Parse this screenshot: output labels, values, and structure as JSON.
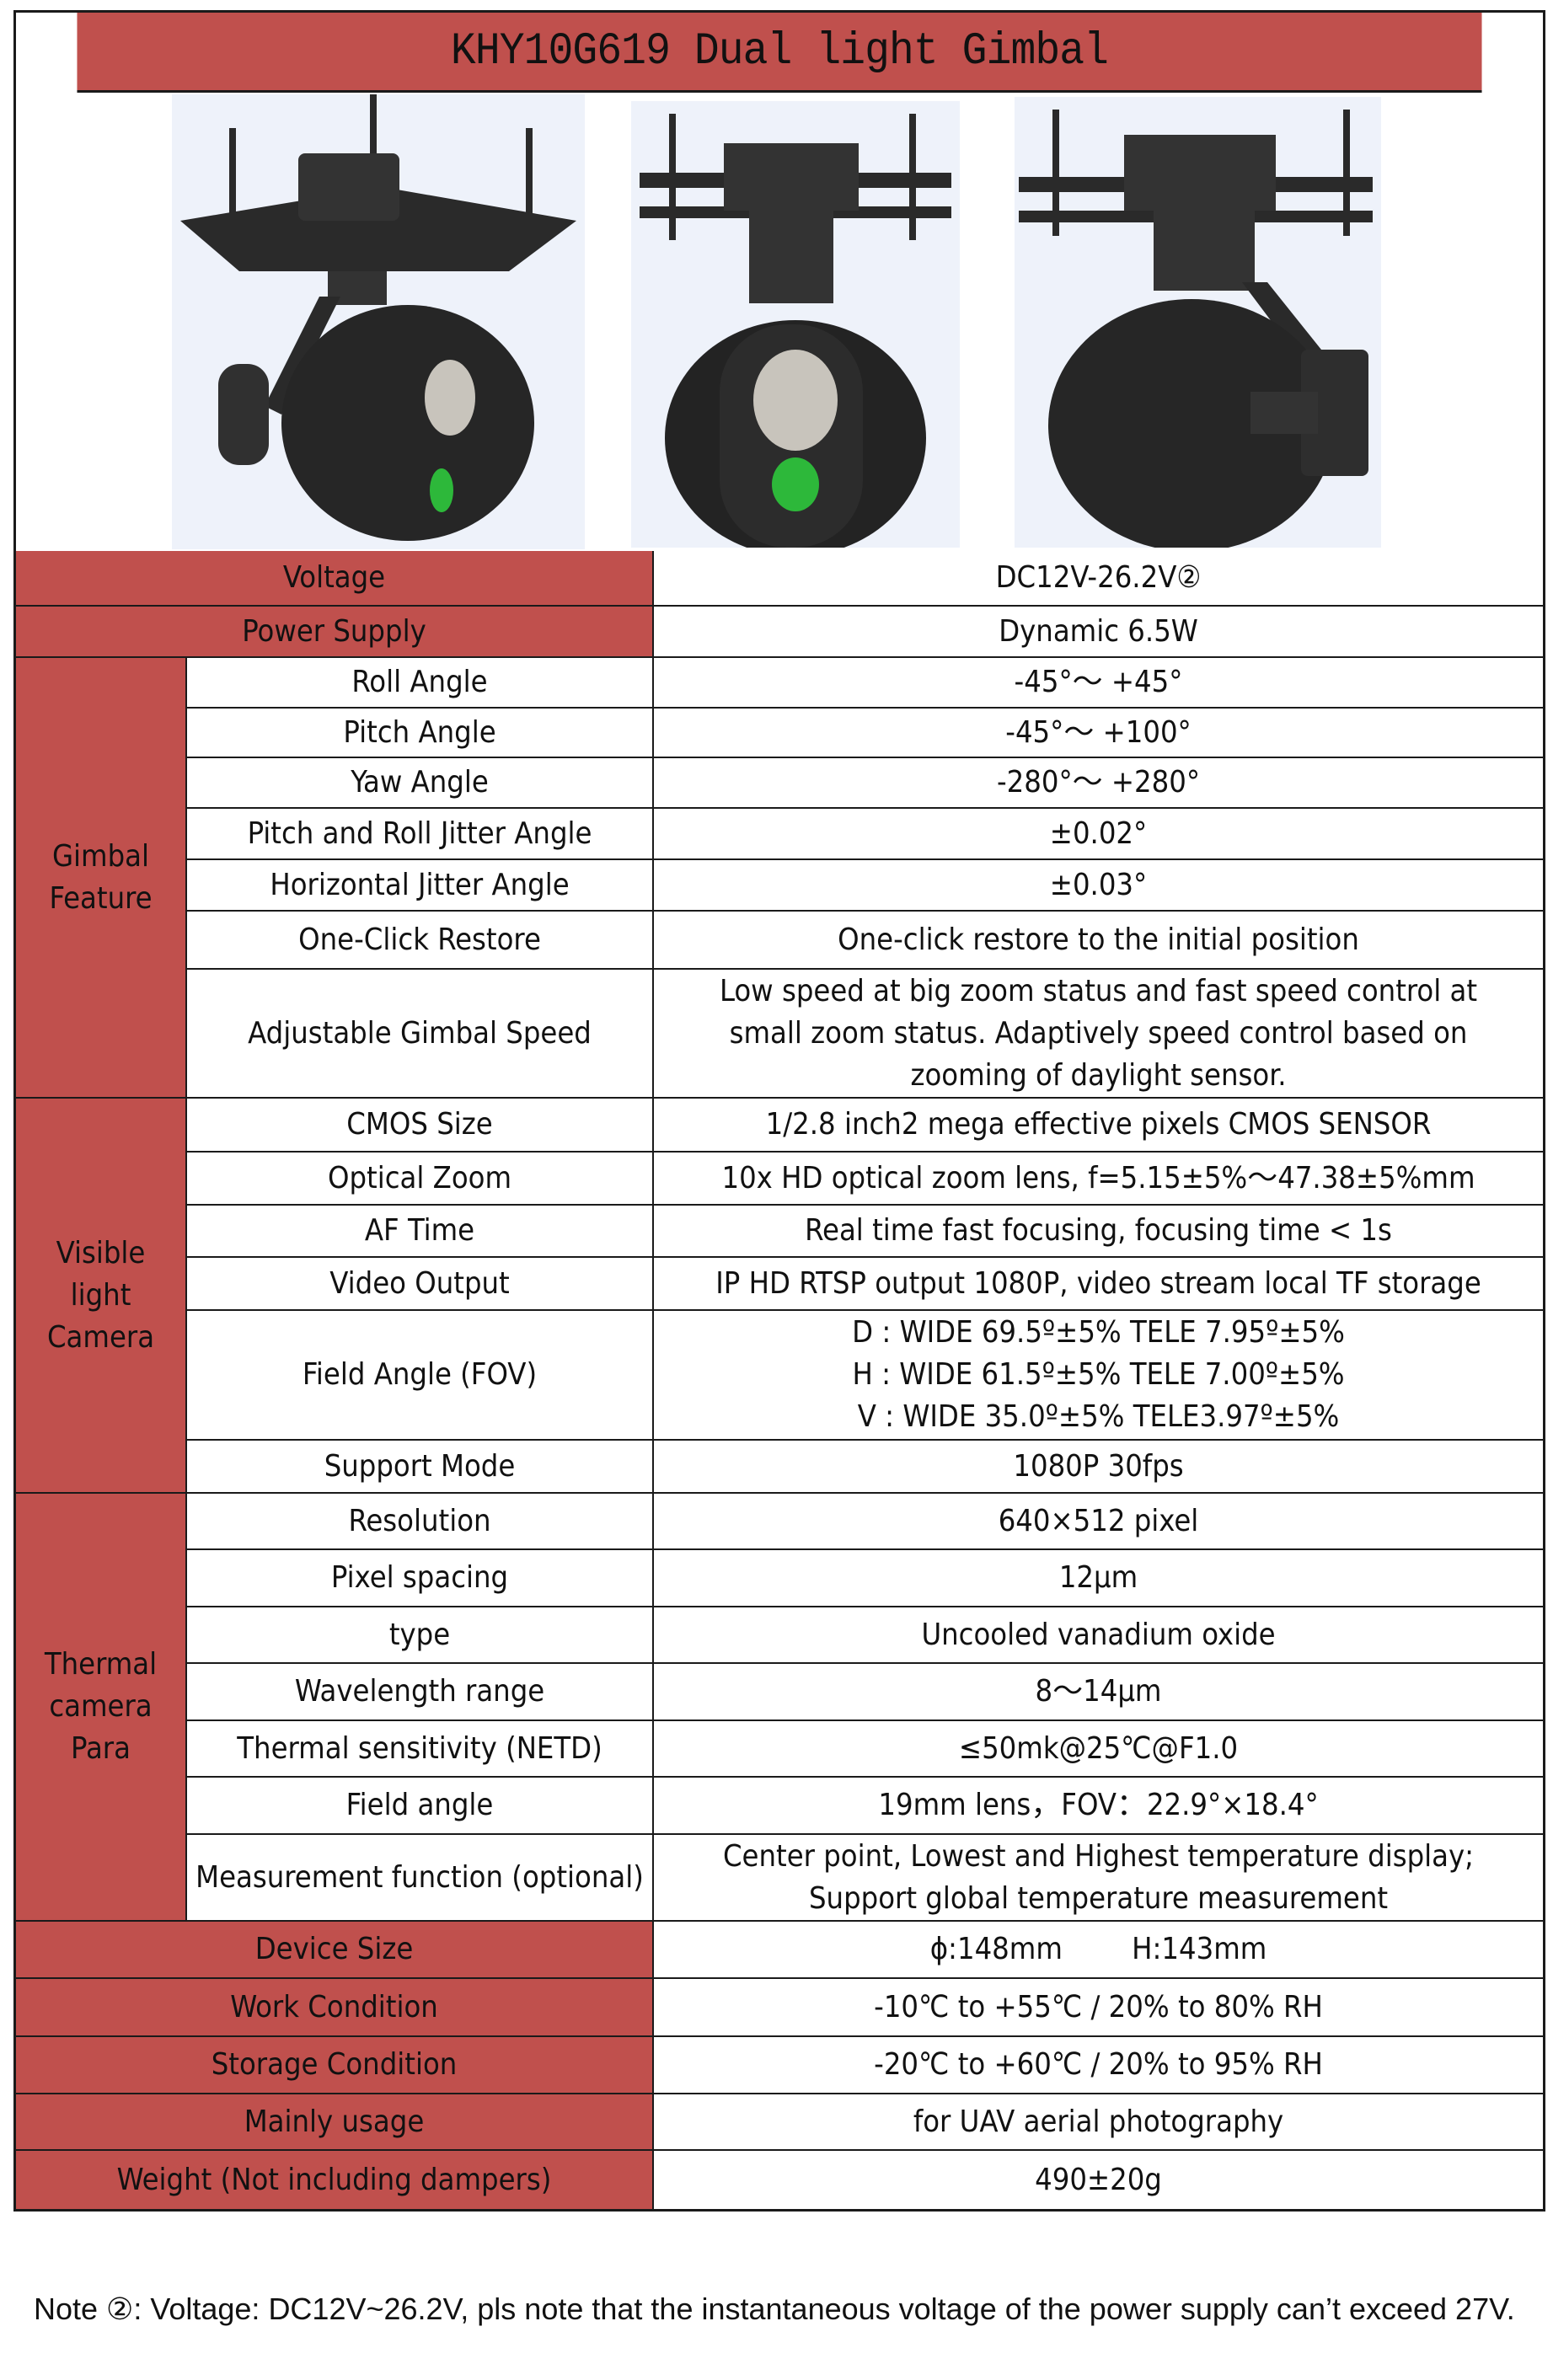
{
  "title": "KHY10G619 Dual light Gimbal",
  "colors": {
    "header_red": "#c0504d",
    "border": "#1a1a1a",
    "lens_green": "#2db83a"
  },
  "images": [
    "gimbal-angle-view",
    "gimbal-front-view",
    "gimbal-side-view"
  ],
  "specs": [
    {
      "label": "Voltage",
      "value": [
        "DC12V-26.2V②"
      ]
    },
    {
      "label": "Power Supply",
      "value": [
        "Dynamic 6.5W"
      ]
    },
    {
      "group": "Gimbal Feature",
      "label": "Roll Angle",
      "value": [
        "-45°～ +45°"
      ]
    },
    {
      "group": "Gimbal Feature",
      "label": "Pitch Angle",
      "value": [
        "-45°～ +100°"
      ]
    },
    {
      "group": "Gimbal Feature",
      "label": "Yaw Angle",
      "value": [
        "-280°～ +280°"
      ]
    },
    {
      "group": "Gimbal Feature",
      "label": "Pitch and Roll Jitter Angle",
      "value": [
        "±0.02°"
      ]
    },
    {
      "group": "Gimbal Feature",
      "label": "Horizontal Jitter Angle",
      "value": [
        "±0.03°"
      ]
    },
    {
      "group": "Gimbal Feature",
      "label": "One-Click Restore",
      "value": [
        "One-click restore to the initial position"
      ]
    },
    {
      "group": "Gimbal Feature",
      "label": "Adjustable Gimbal Speed",
      "value": [
        "Low speed at big zoom status and fast speed control at",
        "small zoom status. Adaptively speed control based on",
        "zooming of daylight sensor."
      ]
    },
    {
      "group": "Visible light Camera",
      "label": "CMOS Size",
      "value": [
        "1/2.8 inch2 mega effective pixels CMOS SENSOR"
      ]
    },
    {
      "group": "Visible light Camera",
      "label": "Optical Zoom",
      "value": [
        "10x HD optical zoom lens, f=5.15±5%～47.38±5%mm"
      ]
    },
    {
      "group": "Visible light Camera",
      "label": "AF Time",
      "value": [
        "Real time fast focusing, focusing time < 1s"
      ]
    },
    {
      "group": "Visible light Camera",
      "label": "Video Output",
      "value": [
        "IP HD RTSP output 1080P, video stream local TF storage"
      ]
    },
    {
      "group": "Visible light Camera",
      "label": "Field Angle (FOV)",
      "value": [
        "D : WIDE 69.5º±5% TELE 7.95º±5%",
        "H : WIDE 61.5º±5% TELE 7.00º±5%",
        "V : WIDE 35.0º±5% TELE3.97º±5%"
      ]
    },
    {
      "group": "Visible light Camera",
      "label": "Support Mode",
      "value": [
        "1080P 30fps"
      ]
    },
    {
      "group": "Thermal camera Para",
      "label": "Resolution",
      "value": [
        "640×512 pixel"
      ]
    },
    {
      "group": "Thermal camera Para",
      "label": "Pixel spacing",
      "value": [
        "12μm"
      ]
    },
    {
      "group": "Thermal camera Para",
      "label": "type",
      "value": [
        "Uncooled vanadium oxide"
      ]
    },
    {
      "group": "Thermal camera Para",
      "label": "Wavelength range",
      "value": [
        "8～14μm"
      ]
    },
    {
      "group": "Thermal camera Para",
      "label": "Thermal sensitivity (NETD)",
      "value": [
        "≤50mk@25℃@F1.0"
      ]
    },
    {
      "group": "Thermal camera Para",
      "label": "Field angle",
      "value": [
        "19mm lens，FOV：22.9°×18.4°"
      ]
    },
    {
      "group": "Thermal camera Para",
      "label": "Measurement function (optional)",
      "value": [
        "Center point, Lowest and Highest temperature display;",
        "Support global temperature measurement"
      ]
    },
    {
      "label": "Device Size",
      "value": [
        "ϕ:148mm        H:143mm"
      ]
    },
    {
      "label": "Work Condition",
      "value": [
        "-10℃ to +55℃ / 20% to 80% RH"
      ]
    },
    {
      "label": "Storage Condition",
      "value": [
        "-20℃ to +60℃ / 20% to 95% RH"
      ]
    },
    {
      "label": "Mainly usage",
      "value": [
        "for UAV aerial photography"
      ]
    },
    {
      "label": "Weight (Not including dampers)",
      "value": [
        "490±20g"
      ]
    }
  ],
  "group_labels": {
    "Gimbal Feature": [
      "Gimbal",
      "Feature"
    ],
    "Visible light Camera": [
      "Visible",
      "light",
      "Camera"
    ],
    "Thermal camera Para": [
      "Thermal",
      "camera",
      "Para"
    ]
  },
  "note": "Note ②: Voltage: DC12V~26.2V, pls note that the instantaneous voltage of the power supply can’t exceed 27V."
}
